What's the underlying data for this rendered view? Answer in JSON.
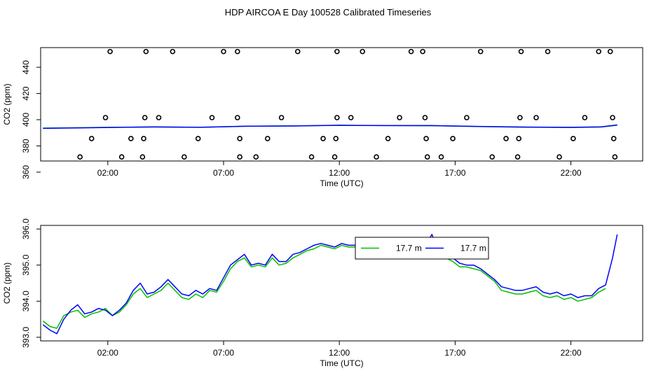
{
  "title": "HDP AIRCOA E  Day 100528  Calibrated Timeseries",
  "colors": {
    "green": "#00c000",
    "blue": "#0000ff",
    "axis": "#000000"
  },
  "chart_data": [
    {
      "type": "scatter",
      "name": "top",
      "xlabel": "Time (UTC)",
      "ylabel": "CO2 (ppm)",
      "xlim": [
        -0.9,
        25.1
      ],
      "ylim": [
        368.5,
        455
      ],
      "x_ticks": [
        2,
        7,
        12,
        17,
        22
      ],
      "x_tick_labels": [
        "02:00",
        "07:00",
        "12:00",
        "17:00",
        "22:00"
      ],
      "y_ticks": [
        360,
        380,
        400,
        420,
        440
      ],
      "y_tick_labels": [
        "360",
        "380",
        "400",
        "420",
        "440"
      ],
      "points": [
        [
          0.8,
          371.6
        ],
        [
          1.3,
          385.6
        ],
        [
          1.9,
          401.6
        ],
        [
          2.1,
          452
        ],
        [
          2.6,
          371.6
        ],
        [
          3.0,
          385.6
        ],
        [
          3.5,
          371.6
        ],
        [
          3.55,
          385.6
        ],
        [
          3.6,
          401.6
        ],
        [
          3.65,
          452
        ],
        [
          4.2,
          401.6
        ],
        [
          4.8,
          452
        ],
        [
          5.3,
          371.6
        ],
        [
          5.9,
          385.6
        ],
        [
          6.5,
          401.6
        ],
        [
          7.0,
          452
        ],
        [
          7.6,
          401.6
        ],
        [
          7.6,
          452
        ],
        [
          7.7,
          385.6
        ],
        [
          7.7,
          371.6
        ],
        [
          8.4,
          371.6
        ],
        [
          8.9,
          385.6
        ],
        [
          9.5,
          401.6
        ],
        [
          10.2,
          452
        ],
        [
          10.8,
          371.6
        ],
        [
          11.3,
          385.6
        ],
        [
          11.8,
          371.6
        ],
        [
          11.85,
          385.6
        ],
        [
          11.9,
          401.6
        ],
        [
          11.9,
          452
        ],
        [
          12.5,
          401.6
        ],
        [
          13.0,
          452
        ],
        [
          13.6,
          371.6
        ],
        [
          14.1,
          385.6
        ],
        [
          14.6,
          401.6
        ],
        [
          15.1,
          452
        ],
        [
          15.6,
          452
        ],
        [
          15.7,
          401.6
        ],
        [
          15.75,
          385.6
        ],
        [
          15.8,
          371.6
        ],
        [
          16.4,
          371.6
        ],
        [
          16.9,
          385.6
        ],
        [
          17.5,
          401.6
        ],
        [
          18.1,
          452
        ],
        [
          18.6,
          371.6
        ],
        [
          19.2,
          385.6
        ],
        [
          19.7,
          371.6
        ],
        [
          19.75,
          385.6
        ],
        [
          19.8,
          401.6
        ],
        [
          19.85,
          452
        ],
        [
          20.5,
          401.6
        ],
        [
          21.0,
          452
        ],
        [
          21.5,
          371.6
        ],
        [
          22.1,
          385.6
        ],
        [
          22.6,
          401.6
        ],
        [
          23.2,
          452
        ],
        [
          23.7,
          452
        ],
        [
          23.8,
          401.6
        ],
        [
          23.85,
          385.6
        ],
        [
          23.9,
          371.6
        ]
      ],
      "lines": [
        {
          "color": "#00c000",
          "x": [
            -0.8,
            0,
            2,
            4,
            6,
            8,
            10,
            12,
            14,
            16,
            18,
            20,
            22,
            23.3,
            24.0
          ],
          "y": [
            393.6,
            393.7,
            394.2,
            394.4,
            394.3,
            395.0,
            395.3,
            395.7,
            395.5,
            395.4,
            394.8,
            394.3,
            394.1,
            394.4,
            395.8
          ]
        },
        {
          "color": "#0000ff",
          "x": [
            -0.8,
            0,
            2,
            4,
            6,
            8,
            10,
            12,
            14,
            16,
            18,
            20,
            22,
            23.3,
            24.0
          ],
          "y": [
            393.4,
            393.6,
            394.1,
            394.5,
            394.2,
            395.1,
            395.2,
            395.8,
            395.5,
            395.5,
            394.9,
            394.4,
            394.2,
            394.5,
            396.0
          ]
        }
      ]
    },
    {
      "type": "line",
      "name": "bottom",
      "xlabel": "Time (UTC)",
      "ylabel": "CO2 (ppm)",
      "xlim": [
        -0.9,
        25.1
      ],
      "ylim": [
        392.9,
        396.1
      ],
      "x_ticks": [
        2,
        7,
        12,
        17,
        22
      ],
      "x_tick_labels": [
        "02:00",
        "07:00",
        "12:00",
        "17:00",
        "22:00"
      ],
      "y_ticks": [
        393.0,
        394.0,
        395.0,
        396.0
      ],
      "y_tick_labels": [
        "393.0",
        "394.0",
        "395.0",
        "396.0"
      ],
      "legend": {
        "position": "top-center",
        "entries": [
          "17.7 m",
          "17.7 m"
        ]
      },
      "series": [
        {
          "color": "#00c000",
          "x": [
            -0.8,
            -0.5,
            -0.2,
            0.1,
            0.4,
            0.7,
            1.0,
            1.3,
            1.6,
            1.9,
            2.2,
            2.5,
            2.8,
            3.1,
            3.4,
            3.7,
            4.0,
            4.3,
            4.6,
            4.9,
            5.2,
            5.5,
            5.8,
            6.1,
            6.4,
            6.7,
            7.0,
            7.3,
            7.6,
            7.9,
            8.2,
            8.5,
            8.8,
            9.1,
            9.4,
            9.7,
            10.0,
            10.3,
            10.6,
            10.9,
            11.2,
            11.5,
            11.8,
            12.1,
            12.4,
            12.7,
            13.0,
            13.3,
            13.6,
            13.9,
            14.2,
            14.5,
            14.8,
            15.1,
            15.4,
            15.7,
            16.0,
            16.3,
            16.6,
            16.9,
            17.2,
            17.5,
            17.8,
            18.1,
            18.4,
            18.7,
            19.0,
            19.3,
            19.6,
            19.9,
            20.2,
            20.5,
            20.8,
            21.1,
            21.4,
            21.7,
            22.0,
            22.3,
            22.6,
            22.9,
            23.2,
            23.5
          ],
          "y": [
            393.45,
            393.3,
            393.25,
            393.6,
            393.7,
            393.75,
            393.55,
            393.65,
            393.7,
            393.8,
            393.6,
            393.7,
            393.9,
            394.2,
            394.35,
            394.1,
            394.2,
            394.3,
            394.5,
            394.3,
            394.1,
            394.05,
            394.2,
            394.1,
            394.3,
            394.25,
            394.55,
            394.9,
            395.1,
            395.2,
            394.95,
            395.0,
            394.95,
            395.2,
            395.0,
            395.05,
            395.2,
            395.3,
            395.4,
            395.45,
            395.55,
            395.5,
            395.45,
            395.55,
            395.5,
            395.5,
            395.45,
            395.4,
            395.5,
            395.4,
            395.35,
            395.45,
            395.35,
            395.3,
            395.35,
            395.4,
            395.3,
            395.25,
            395.2,
            395.1,
            394.95,
            394.95,
            394.9,
            394.85,
            394.7,
            394.55,
            394.3,
            394.25,
            394.2,
            394.2,
            394.25,
            394.3,
            394.15,
            394.1,
            394.15,
            394.05,
            394.1,
            394.0,
            394.05,
            394.1,
            394.25,
            394.35
          ]
        },
        {
          "color": "#0000ff",
          "x": [
            -0.8,
            -0.5,
            -0.2,
            0.1,
            0.4,
            0.7,
            1.0,
            1.3,
            1.6,
            1.9,
            2.2,
            2.5,
            2.8,
            3.1,
            3.4,
            3.7,
            4.0,
            4.3,
            4.6,
            4.9,
            5.2,
            5.5,
            5.8,
            6.1,
            6.4,
            6.7,
            7.0,
            7.3,
            7.6,
            7.9,
            8.2,
            8.5,
            8.8,
            9.1,
            9.4,
            9.7,
            10.0,
            10.3,
            10.6,
            10.9,
            11.2,
            11.5,
            11.8,
            12.1,
            12.4,
            12.7,
            13.0,
            13.3,
            13.6,
            13.9,
            14.2,
            14.5,
            14.8,
            15.1,
            15.4,
            15.7,
            16.0,
            16.3,
            16.6,
            16.9,
            17.2,
            17.5,
            17.8,
            18.1,
            18.4,
            18.7,
            19.0,
            19.3,
            19.6,
            19.9,
            20.2,
            20.5,
            20.8,
            21.1,
            21.4,
            21.7,
            22.0,
            22.3,
            22.6,
            22.9,
            23.2,
            23.5,
            23.8,
            24.0
          ],
          "y": [
            393.35,
            393.2,
            393.1,
            393.5,
            393.75,
            393.9,
            393.65,
            393.7,
            393.8,
            393.75,
            393.6,
            393.75,
            393.95,
            394.3,
            394.5,
            394.2,
            394.25,
            394.4,
            394.6,
            394.4,
            394.2,
            394.15,
            394.3,
            394.2,
            394.35,
            394.3,
            394.65,
            395.0,
            395.15,
            395.3,
            395.0,
            395.05,
            395.0,
            395.3,
            395.1,
            395.1,
            395.3,
            395.35,
            395.45,
            395.55,
            395.6,
            395.55,
            395.5,
            395.6,
            395.55,
            395.55,
            395.5,
            395.5,
            395.55,
            395.45,
            395.4,
            395.55,
            395.45,
            395.4,
            395.45,
            395.55,
            395.85,
            395.35,
            395.3,
            395.2,
            395.05,
            395.0,
            395.0,
            394.9,
            394.75,
            394.6,
            394.4,
            394.35,
            394.3,
            394.3,
            394.35,
            394.4,
            394.25,
            394.2,
            394.25,
            394.15,
            394.2,
            394.1,
            394.15,
            394.15,
            394.35,
            394.45,
            395.2,
            395.85
          ]
        }
      ]
    }
  ]
}
